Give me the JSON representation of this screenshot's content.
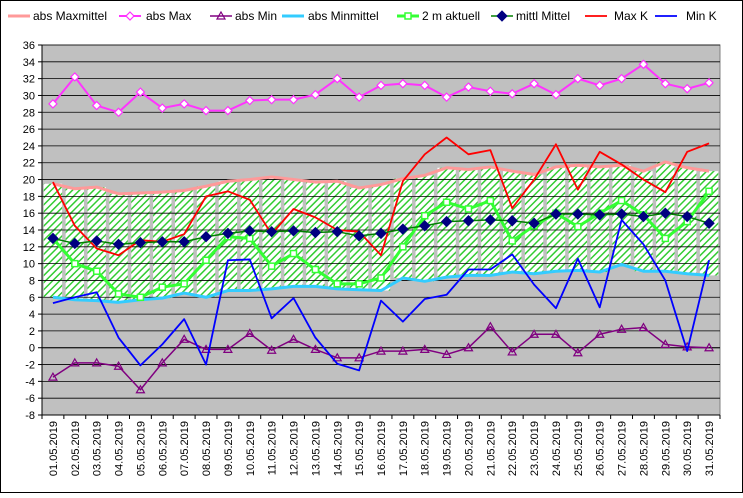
{
  "chart_data": {
    "type": "line",
    "categories": [
      "01.05.2019",
      "02.05.2019",
      "03.05.2019",
      "04.05.2019",
      "05.05.2019",
      "06.05.2019",
      "07.05.2019",
      "08.05.2019",
      "09.05.2019",
      "10.05.2019",
      "11.05.2019",
      "12.05.2019",
      "13.05.2019",
      "14.05.2019",
      "15.05.2019",
      "16.05.2019",
      "17.05.2019",
      "18.05.2019",
      "19.05.2019",
      "20.05.2019",
      "21.05.2019",
      "22.05.2019",
      "23.05.2019",
      "24.05.2019",
      "25.05.2019",
      "26.05.2019",
      "27.05.2019",
      "28.05.2019",
      "29.05.2019",
      "30.05.2019",
      "31.05.2019"
    ],
    "ylim": [
      -8,
      36
    ],
    "yticks": [
      "-8",
      "-6",
      "-4",
      "-2",
      "0",
      "2",
      "4",
      "6",
      "8",
      "10",
      "12",
      "14",
      "16",
      "18",
      "20",
      "22",
      "24",
      "26",
      "28",
      "30",
      "32",
      "34",
      "36"
    ],
    "grid": true,
    "legend_position": "top",
    "colors": {
      "plot_background": "#c0c0c0",
      "range_band_stripes": "#33cc33",
      "range_band_fill": "#ffffff"
    },
    "series": [
      {
        "name": "abs Maxmittel",
        "color": "#ff9999",
        "marker": "none",
        "values": [
          19.5,
          18.9,
          19.1,
          18.3,
          18.4,
          18.5,
          18.7,
          19.2,
          19.8,
          20.0,
          20.3,
          20.0,
          19.7,
          19.8,
          19.0,
          19.4,
          20.1,
          20.5,
          21.4,
          21.2,
          21.5,
          21.0,
          20.6,
          21.5,
          21.7,
          21.5,
          21.7,
          21.0,
          22.1,
          21.4,
          21.0
        ]
      },
      {
        "name": "abs Max",
        "color": "#ff33ff",
        "marker": "diamond-open",
        "values": [
          29.0,
          32.2,
          28.8,
          28.0,
          30.4,
          28.5,
          29.0,
          28.2,
          28.2,
          29.4,
          29.5,
          29.5,
          30.1,
          32.0,
          29.8,
          31.2,
          31.4,
          31.2,
          29.8,
          31.0,
          30.5,
          30.2,
          31.4,
          30.1,
          32.0,
          31.2,
          32.0,
          33.7,
          31.4,
          30.8,
          31.5
        ]
      },
      {
        "name": "abs Min",
        "color": "#800080",
        "marker": "triangle-open",
        "values": [
          -3.5,
          -1.8,
          -1.8,
          -2.2,
          -5.0,
          -1.8,
          1.0,
          -0.2,
          -0.2,
          1.7,
          -0.3,
          1.0,
          -0.2,
          -1.2,
          -1.2,
          -0.4,
          -0.4,
          -0.2,
          -0.8,
          0.0,
          2.5,
          -0.5,
          1.6,
          1.6,
          -0.6,
          1.6,
          2.2,
          2.4,
          0.4,
          0.1,
          0.0
        ]
      },
      {
        "name": "abs Minmittel",
        "color": "#33ccff",
        "marker": "none",
        "values": [
          6.0,
          5.7,
          5.6,
          5.4,
          5.7,
          5.9,
          6.5,
          6.0,
          6.8,
          6.8,
          7.0,
          7.3,
          7.3,
          7.0,
          6.9,
          6.8,
          8.3,
          7.9,
          8.4,
          8.6,
          8.6,
          9.0,
          8.8,
          9.1,
          9.2,
          9.0,
          9.9,
          9.1,
          9.1,
          8.8,
          8.6
        ]
      },
      {
        "name": "2 m aktuell",
        "color": "#33ff33",
        "marker": "square-open",
        "values": [
          13.0,
          10.0,
          9.1,
          6.4,
          6.0,
          7.2,
          7.6,
          10.4,
          13.2,
          13.0,
          9.7,
          11.2,
          9.3,
          7.6,
          7.6,
          8.3,
          12.0,
          15.7,
          17.3,
          16.5,
          17.5,
          12.7,
          14.5,
          16.0,
          14.4,
          16.0,
          17.5,
          15.8,
          13.0,
          15.0,
          18.6
        ]
      },
      {
        "name": "mittl Mittel",
        "color": "#000080",
        "marker": "diamond-filled",
        "line_color": "#008000",
        "values": [
          13.0,
          12.4,
          12.7,
          12.3,
          12.5,
          12.6,
          12.6,
          13.2,
          13.6,
          13.9,
          13.8,
          13.9,
          13.7,
          13.8,
          13.3,
          13.6,
          14.1,
          14.5,
          15.0,
          15.1,
          15.2,
          15.1,
          14.8,
          15.9,
          15.9,
          15.8,
          15.9,
          15.6,
          16.0,
          15.6,
          14.8
        ]
      },
      {
        "name": "Max K",
        "color": "#ff0000",
        "marker": "none",
        "values": [
          19.7,
          14.5,
          11.8,
          11.0,
          12.8,
          12.6,
          13.5,
          18.0,
          18.6,
          17.6,
          13.5,
          16.5,
          15.5,
          14.0,
          13.8,
          11.0,
          19.8,
          23.0,
          25.0,
          23.0,
          23.5,
          16.6,
          20.0,
          24.2,
          18.8,
          23.3,
          21.8,
          20.0,
          18.5,
          23.3,
          24.3
        ]
      },
      {
        "name": "Min K",
        "color": "#0000ff",
        "marker": "none",
        "values": [
          5.3,
          6.0,
          6.6,
          1.2,
          -2.1,
          0.4,
          3.4,
          -2.0,
          10.4,
          10.5,
          3.5,
          5.9,
          1.2,
          -1.9,
          -2.7,
          5.6,
          3.1,
          5.8,
          6.3,
          9.3,
          9.3,
          11.1,
          7.5,
          4.7,
          10.6,
          4.8,
          15.2,
          12.3,
          8.0,
          -0.4,
          10.4
        ]
      }
    ]
  }
}
